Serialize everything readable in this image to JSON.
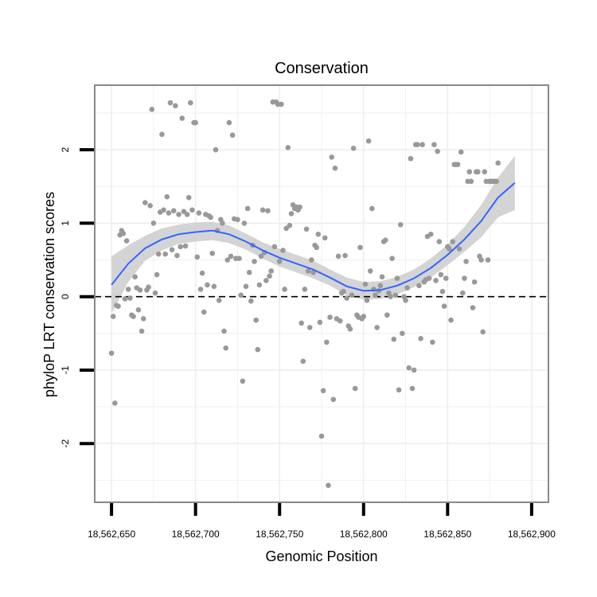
{
  "chart_data": {
    "type": "scatter",
    "title": "Conservation",
    "xlabel": "Genomic Position",
    "ylabel": "phyloP LRT conservation scores",
    "xlim": [
      18562640,
      18562910
    ],
    "ylim": [
      -2.8,
      2.88
    ],
    "x_ticks": [
      {
        "value": 18562650,
        "label": "18,562,650"
      },
      {
        "value": 18562700,
        "label": "18,562,700"
      },
      {
        "value": 18562750,
        "label": "18,562,750"
      },
      {
        "value": 18562800,
        "label": "18,562,800"
      },
      {
        "value": 18562850,
        "label": "18,562,850"
      },
      {
        "value": 18562900,
        "label": "18,562,900"
      }
    ],
    "y_ticks": [
      {
        "value": -2,
        "label": "-2"
      },
      {
        "value": -1,
        "label": "-1"
      },
      {
        "value": 0,
        "label": "0"
      },
      {
        "value": 1,
        "label": "1"
      },
      {
        "value": 2,
        "label": "2"
      }
    ],
    "grid": true,
    "reference_line": {
      "y": 0,
      "style": "dashed"
    },
    "colors": {
      "points": "#999999",
      "smooth_line": "#3366FF",
      "confidence_band": "#cccccc",
      "panel_border": "#888888",
      "grid": "#eeeeee"
    },
    "points": [
      [
        18562650,
        -0.77
      ],
      [
        18562651,
        -0.27
      ],
      [
        18562652,
        -1.45
      ],
      [
        18562653,
        -0.12
      ],
      [
        18562654,
        -0.13
      ],
      [
        18562655,
        0.84
      ],
      [
        18562656,
        0.9
      ],
      [
        18562657,
        0.86
      ],
      [
        18562658,
        -0.03
      ],
      [
        18562659,
        0.76
      ],
      [
        18562660,
        0.1
      ],
      [
        18562661,
        -0.02
      ],
      [
        18562662,
        -0.25
      ],
      [
        18562663,
        -0.27
      ],
      [
        18562664,
        0.27
      ],
      [
        18562665,
        0.12
      ],
      [
        18562666,
        -0.18
      ],
      [
        18562667,
        0.09
      ],
      [
        18562668,
        -0.47
      ],
      [
        18562669,
        -0.3
      ],
      [
        18562670,
        1.28
      ],
      [
        18562671,
        0.09
      ],
      [
        18562672,
        0.13
      ],
      [
        18562673,
        1.24
      ],
      [
        18562674,
        2.55
      ],
      [
        18562675,
        1.0
      ],
      [
        18562676,
        0.05
      ],
      [
        18562677,
        0.3
      ],
      [
        18562678,
        0.58
      ],
      [
        18562679,
        1.15
      ],
      [
        18562680,
        2.21
      ],
      [
        18562681,
        1.18
      ],
      [
        18562682,
        0.58
      ],
      [
        18562683,
        1.36
      ],
      [
        18562684,
        1.14
      ],
      [
        18562685,
        2.64
      ],
      [
        18562686,
        0.64
      ],
      [
        18562687,
        1.17
      ],
      [
        18562688,
        2.6
      ],
      [
        18562689,
        0.56
      ],
      [
        18562690,
        1.12
      ],
      [
        18562691,
        0.68
      ],
      [
        18562692,
        2.43
      ],
      [
        18562693,
        1.16
      ],
      [
        18562694,
        0.69
      ],
      [
        18562695,
        1.12
      ],
      [
        18562696,
        1.35
      ],
      [
        18562697,
        2.64
      ],
      [
        18562698,
        1.18
      ],
      [
        18562699,
        2.37
      ],
      [
        18562700,
        2.37
      ],
      [
        18562701,
        0.54
      ],
      [
        18562702,
        1.14
      ],
      [
        18562703,
        0.1
      ],
      [
        18562704,
        0.32
      ],
      [
        18562705,
        -0.21
      ],
      [
        18562706,
        1.12
      ],
      [
        18562707,
        0.16
      ],
      [
        18562708,
        1.1
      ],
      [
        18562709,
        1.08
      ],
      [
        18562710,
        0.59
      ],
      [
        18562711,
        0.14
      ],
      [
        18562712,
        2.0
      ],
      [
        18562713,
        0.9
      ],
      [
        18562714,
        -0.05
      ],
      [
        18562715,
        1.05
      ],
      [
        18562716,
        1.0
      ],
      [
        18562717,
        -0.47
      ],
      [
        18562718,
        -0.7
      ],
      [
        18562719,
        0.5
      ],
      [
        18562720,
        2.37
      ],
      [
        18562721,
        0.55
      ],
      [
        18562722,
        2.2
      ],
      [
        18562723,
        1.06
      ],
      [
        18562724,
        0.52
      ],
      [
        18562725,
        1.05
      ],
      [
        18562726,
        0.52
      ],
      [
        18562727,
        0.02
      ],
      [
        18562728,
        -1.15
      ],
      [
        18562729,
        1.0
      ],
      [
        18562730,
        0.14
      ],
      [
        18562731,
        1.2
      ],
      [
        18562732,
        0.33
      ],
      [
        18562733,
        -0.06
      ],
      [
        18562734,
        0.7
      ],
      [
        18562735,
        0.48
      ],
      [
        18562736,
        -0.32
      ],
      [
        18562737,
        -0.72
      ],
      [
        18562738,
        0.16
      ],
      [
        18562739,
        0.55
      ],
      [
        18562740,
        1.18
      ],
      [
        18562741,
        0.6
      ],
      [
        18562742,
        0.22
      ],
      [
        18562743,
        1.17
      ],
      [
        18562744,
        0.28
      ],
      [
        18562745,
        0.35
      ],
      [
        18562746,
        2.65
      ],
      [
        18562747,
        0.68
      ],
      [
        18562748,
        2.65
      ],
      [
        18562749,
        2.62
      ],
      [
        18562750,
        0.48
      ],
      [
        18562751,
        2.62
      ],
      [
        18562752,
        0.63
      ],
      [
        18562753,
        0.1
      ],
      [
        18562754,
        0.93
      ],
      [
        18562755,
        2.03
      ],
      [
        18562756,
        0.97
      ],
      [
        18562757,
        1.13
      ],
      [
        18562758,
        1.25
      ],
      [
        18562759,
        1.2
      ],
      [
        18562760,
        1.22
      ],
      [
        18562761,
        1.18
      ],
      [
        18562762,
        1.22
      ],
      [
        18562763,
        -0.36
      ],
      [
        18562764,
        -0.88
      ],
      [
        18562765,
        0.1
      ],
      [
        18562766,
        0.92
      ],
      [
        18562767,
        0.35
      ],
      [
        18562768,
        -0.42
      ],
      [
        18562769,
        0.5
      ],
      [
        18562770,
        0.33
      ],
      [
        18562771,
        0.7
      ],
      [
        18562772,
        0.67
      ],
      [
        18562773,
        0.85
      ],
      [
        18562774,
        -0.35
      ],
      [
        18562775,
        -1.9
      ],
      [
        18562776,
        -1.28
      ],
      [
        18562777,
        0.8
      ],
      [
        18562778,
        -0.62
      ],
      [
        18562779,
        -2.57
      ],
      [
        18562780,
        -0.28
      ],
      [
        18562781,
        1.9
      ],
      [
        18562782,
        -1.4
      ],
      [
        18562783,
        1.75
      ],
      [
        18562784,
        -0.3
      ],
      [
        18562785,
        0.55
      ],
      [
        18562786,
        -0.33
      ],
      [
        18562787,
        0.05
      ],
      [
        18562788,
        0.07
      ],
      [
        18562789,
        0.56
      ],
      [
        18562790,
        -0.02
      ],
      [
        18562791,
        -0.4
      ],
      [
        18562792,
        -0.44
      ],
      [
        18562793,
        0.02
      ],
      [
        18562794,
        2.02
      ],
      [
        18562795,
        -1.25
      ],
      [
        18562796,
        -0.25
      ],
      [
        18562797,
        -0.28
      ],
      [
        18562798,
        0.67
      ],
      [
        18562799,
        -0.3
      ],
      [
        18562800,
        -0.27
      ],
      [
        18562801,
        0.17
      ],
      [
        18562802,
        -0.05
      ],
      [
        18562803,
        2.12
      ],
      [
        18562804,
        0.35
      ],
      [
        18562805,
        1.2
      ],
      [
        18562806,
        0.1
      ],
      [
        18562807,
        0.02
      ],
      [
        18562808,
        -0.42
      ],
      [
        18562809,
        0.08
      ],
      [
        18562810,
        0.15
      ],
      [
        18562811,
        0.27
      ],
      [
        18562812,
        0.75
      ],
      [
        18562813,
        0.77
      ],
      [
        18562814,
        -0.25
      ],
      [
        18562815,
        0.05
      ],
      [
        18562816,
        0.0
      ],
      [
        18562817,
        0.52
      ],
      [
        18562818,
        -0.58
      ],
      [
        18562819,
        0.02
      ],
      [
        18562820,
        0.25
      ],
      [
        18562821,
        -1.27
      ],
      [
        18562822,
        0.98
      ],
      [
        18562823,
        -0.5
      ],
      [
        18562824,
        0.0
      ],
      [
        18562825,
        -0.05
      ],
      [
        18562826,
        0.12
      ],
      [
        18562827,
        -0.97
      ],
      [
        18562828,
        1.88
      ],
      [
        18562829,
        -1.25
      ],
      [
        18562830,
        -1.0
      ],
      [
        18562831,
        2.07
      ],
      [
        18562832,
        2.07
      ],
      [
        18562833,
        0.15
      ],
      [
        18562834,
        -0.57
      ],
      [
        18562835,
        2.07
      ],
      [
        18562836,
        0.2
      ],
      [
        18562837,
        0.23
      ],
      [
        18562838,
        0.82
      ],
      [
        18562839,
        0.25
      ],
      [
        18562840,
        0.85
      ],
      [
        18562841,
        -0.62
      ],
      [
        18562842,
        2.07
      ],
      [
        18562843,
        0.22
      ],
      [
        18562844,
        1.98
      ],
      [
        18562845,
        0.75
      ],
      [
        18562846,
        0.3
      ],
      [
        18562847,
        0.07
      ],
      [
        18562848,
        -0.13
      ],
      [
        18562849,
        0.25
      ],
      [
        18562850,
        0.68
      ],
      [
        18562851,
        0.65
      ],
      [
        18562852,
        -0.32
      ],
      [
        18562853,
        0.75
      ],
      [
        18562854,
        1.8
      ],
      [
        18562855,
        1.8
      ],
      [
        18562856,
        1.8
      ],
      [
        18562857,
        0.65
      ],
      [
        18562858,
        1.97
      ],
      [
        18562859,
        0.05
      ],
      [
        18562860,
        0.25
      ],
      [
        18562861,
        0.48
      ],
      [
        18562862,
        1.57
      ],
      [
        18562863,
        1.7
      ],
      [
        18562864,
        1.57
      ],
      [
        18562865,
        -0.15
      ],
      [
        18562866,
        0.2
      ],
      [
        18562867,
        1.7
      ],
      [
        18562868,
        1.7
      ],
      [
        18562869,
        0.55
      ],
      [
        18562870,
        0.5
      ],
      [
        18562871,
        -0.48
      ],
      [
        18562872,
        1.7
      ],
      [
        18562873,
        1.57
      ],
      [
        18562874,
        0.5
      ],
      [
        18562875,
        1.57
      ],
      [
        18562876,
        1.57
      ],
      [
        18562877,
        1.57
      ],
      [
        18562878,
        1.57
      ],
      [
        18562879,
        1.57
      ],
      [
        18562880,
        1.82
      ]
    ],
    "smooth_line": [
      [
        18562650,
        0.16
      ],
      [
        18562660,
        0.45
      ],
      [
        18562670,
        0.66
      ],
      [
        18562680,
        0.78
      ],
      [
        18562690,
        0.85
      ],
      [
        18562700,
        0.88
      ],
      [
        18562710,
        0.9
      ],
      [
        18562720,
        0.85
      ],
      [
        18562730,
        0.75
      ],
      [
        18562740,
        0.63
      ],
      [
        18562750,
        0.53
      ],
      [
        18562760,
        0.45
      ],
      [
        18562770,
        0.37
      ],
      [
        18562780,
        0.26
      ],
      [
        18562790,
        0.14
      ],
      [
        18562800,
        0.08
      ],
      [
        18562810,
        0.09
      ],
      [
        18562820,
        0.15
      ],
      [
        18562830,
        0.25
      ],
      [
        18562840,
        0.39
      ],
      [
        18562850,
        0.57
      ],
      [
        18562860,
        0.78
      ],
      [
        18562870,
        1.03
      ],
      [
        18562880,
        1.35
      ],
      [
        18562890,
        1.55
      ]
    ],
    "confidence_band": {
      "upper": [
        [
          18562650,
          0.55
        ],
        [
          18562660,
          0.7
        ],
        [
          18562670,
          0.83
        ],
        [
          18562680,
          0.93
        ],
        [
          18562690,
          0.98
        ],
        [
          18562700,
          1.01
        ],
        [
          18562710,
          1.02
        ],
        [
          18562720,
          0.97
        ],
        [
          18562730,
          0.86
        ],
        [
          18562740,
          0.74
        ],
        [
          18562750,
          0.65
        ],
        [
          18562760,
          0.57
        ],
        [
          18562770,
          0.49
        ],
        [
          18562780,
          0.37
        ],
        [
          18562790,
          0.26
        ],
        [
          18562800,
          0.2
        ],
        [
          18562810,
          0.21
        ],
        [
          18562820,
          0.27
        ],
        [
          18562830,
          0.37
        ],
        [
          18562840,
          0.52
        ],
        [
          18562850,
          0.71
        ],
        [
          18562860,
          0.95
        ],
        [
          18562870,
          1.25
        ],
        [
          18562880,
          1.62
        ],
        [
          18562890,
          1.92
        ]
      ],
      "lower": [
        [
          18562650,
          -0.23
        ],
        [
          18562660,
          0.2
        ],
        [
          18562670,
          0.49
        ],
        [
          18562680,
          0.63
        ],
        [
          18562690,
          0.72
        ],
        [
          18562700,
          0.75
        ],
        [
          18562710,
          0.77
        ],
        [
          18562720,
          0.73
        ],
        [
          18562730,
          0.64
        ],
        [
          18562740,
          0.52
        ],
        [
          18562750,
          0.41
        ],
        [
          18562760,
          0.33
        ],
        [
          18562770,
          0.25
        ],
        [
          18562780,
          0.15
        ],
        [
          18562790,
          0.02
        ],
        [
          18562800,
          -0.04
        ],
        [
          18562810,
          -0.03
        ],
        [
          18562820,
          0.03
        ],
        [
          18562830,
          0.13
        ],
        [
          18562840,
          0.26
        ],
        [
          18562850,
          0.43
        ],
        [
          18562860,
          0.61
        ],
        [
          18562870,
          0.81
        ],
        [
          18562880,
          1.08
        ],
        [
          18562890,
          1.18
        ]
      ]
    }
  }
}
